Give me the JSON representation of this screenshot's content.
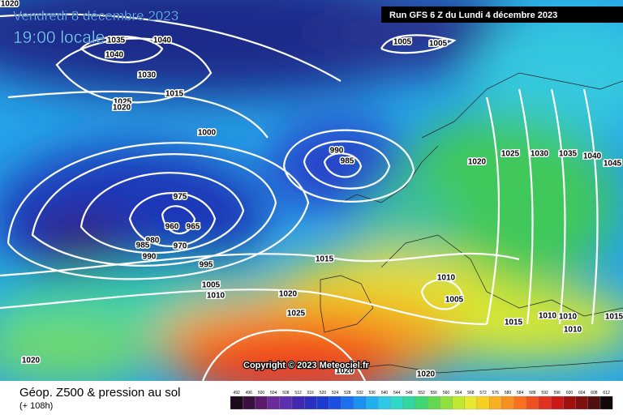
{
  "header": {
    "valid_time": "Vendredi 8 décembre 2023",
    "local_time": "19:00 locale",
    "run": "Run GFS 6 Z du Lundi 4 décembre 2023"
  },
  "map": {
    "copyright": "Copyright © 2023 Meteociel.fr",
    "isobar_labels": [
      1020,
      1035,
      1040,
      1040,
      1030,
      1025,
      1020,
      1015,
      1000,
      990,
      985,
      975,
      960,
      965,
      970,
      980,
      985,
      990,
      995,
      1015,
      1005,
      1010,
      1020,
      1025,
      1010,
      1005,
      1020,
      1020,
      1020,
      1005,
      1005,
      1025,
      1030,
      1035,
      1040,
      1045,
      1020,
      1010,
      1010,
      1015,
      1015,
      1010
    ]
  },
  "footer": {
    "title": "Géop. Z500 & pression au sol",
    "lead": "(+ 108h)",
    "scale": [
      492,
      496,
      500,
      504,
      508,
      512,
      516,
      520,
      524,
      528,
      532,
      536,
      540,
      544,
      548,
      552,
      556,
      560,
      564,
      568,
      572,
      576,
      580,
      584,
      588,
      592,
      596,
      600,
      604,
      608,
      612
    ]
  }
}
